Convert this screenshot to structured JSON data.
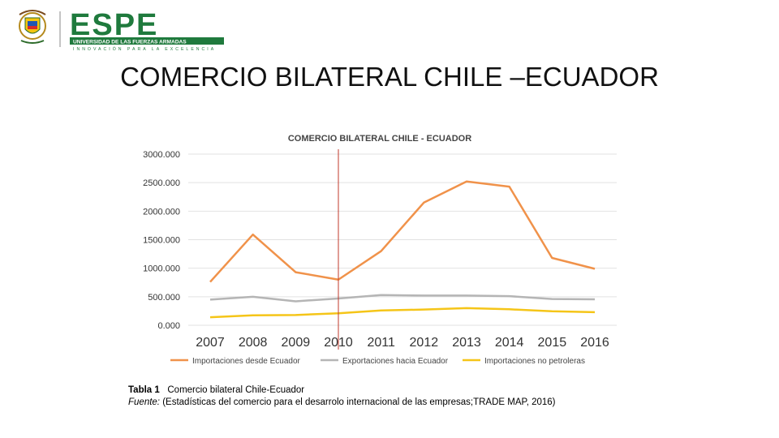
{
  "logo": {
    "wordmark": "ESPE",
    "subtitle": "UNIVERSIDAD DE LAS FUERZAS ARMADAS",
    "tagline": "INNOVACIÓN PARA LA EXCELENCIA",
    "brand_color": "#1f7a3d"
  },
  "slide_title": "COMERCIO BILATERAL CHILE –ECUADOR",
  "chart_data": {
    "type": "line",
    "title": "COMERCIO BILATERAL  CHILE - ECUADOR",
    "x": [
      "2007",
      "2008",
      "2009",
      "2010",
      "2011",
      "2012",
      "2013",
      "2014",
      "2015",
      "2016"
    ],
    "y_ticks": [
      "3000.000",
      "2500.000",
      "2000.000",
      "1500.000",
      "1000.000",
      "500.000",
      "0.000"
    ],
    "ylim": [
      0,
      3000
    ],
    "grid": true,
    "legend_position": "bottom",
    "marker_line_x": "2010",
    "marker_line_color": "#c0392b",
    "series": [
      {
        "name": "Importaciones desde Ecuador",
        "color": "#f0924a",
        "values": [
          760,
          1590,
          930,
          800,
          1300,
          2150,
          2520,
          2430,
          1180,
          990
        ]
      },
      {
        "name": "Exportaciones hacia Ecuador",
        "color": "#b5b5b5",
        "values": [
          450,
          500,
          420,
          470,
          530,
          520,
          520,
          510,
          460,
          455
        ]
      },
      {
        "name": "Importaciones no petroleras",
        "color": "#f5c518",
        "values": [
          140,
          175,
          180,
          210,
          260,
          275,
          300,
          280,
          245,
          230
        ]
      }
    ]
  },
  "caption": {
    "label": "Tabla 1",
    "text": "Comercio bilateral Chile-Ecuador",
    "source_label": "Fuente:",
    "source_text": "(Estadísticas del comercio para el desarrolo internacional de las empresas;TRADE MAP, 2016)"
  }
}
